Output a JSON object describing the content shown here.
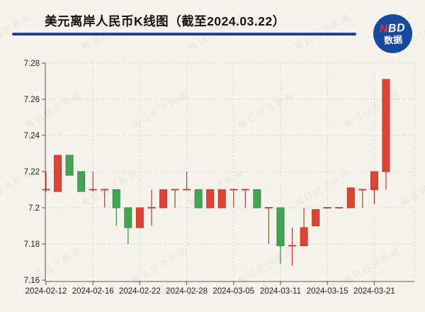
{
  "header": {
    "title": "美元离岸人民币K线图（截至2024.03.22）",
    "logo": {
      "n": "N",
      "bd": "BD",
      "subtext": "数据"
    }
  },
  "watermark": {
    "text": "每日经济新闻"
  },
  "chart_data": {
    "type": "candlestick",
    "title": "美元离岸人民币K线图（截至2024.03.22）",
    "ylabel": "",
    "xlabel": "",
    "ylim": [
      7.16,
      7.28
    ],
    "grid": true,
    "y_ticks": [
      7.16,
      7.18,
      7.2,
      7.22,
      7.24,
      7.26,
      7.28
    ],
    "y_tick_labels": [
      "7.16",
      "7.18",
      "7.2",
      "7.22",
      "7.24",
      "7.26",
      "7.28"
    ],
    "x_tick_labels": [
      "2024-02-12",
      "2024-02-16",
      "2024-02-22",
      "2024-02-28",
      "2024-03-05",
      "2024-03-11",
      "2024-03-15",
      "2024-03-21"
    ],
    "x_tick_indices": [
      0,
      4,
      8,
      12,
      16,
      20,
      24,
      28
    ],
    "colors": {
      "up_fill": "#de4337",
      "up_stroke": "#bf392d",
      "down_fill": "#46a455",
      "down_stroke": "#2f8a41",
      "axis": "#555555",
      "label": "#222222",
      "gridline": "#ccc8bf"
    },
    "candles": [
      {
        "date": "2024-02-12",
        "o": 7.21,
        "h": 7.22,
        "l": 7.209,
        "c": 7.21
      },
      {
        "date": "2024-02-13",
        "o": 7.209,
        "h": 7.229,
        "l": 7.209,
        "c": 7.229
      },
      {
        "date": "2024-02-14",
        "o": 7.229,
        "h": 7.229,
        "l": 7.218,
        "c": 7.218
      },
      {
        "date": "2024-02-15",
        "o": 7.22,
        "h": 7.22,
        "l": 7.209,
        "c": 7.209
      },
      {
        "date": "2024-02-16",
        "o": 7.21,
        "h": 7.22,
        "l": 7.209,
        "c": 7.21
      },
      {
        "date": "2024-02-19",
        "o": 7.21,
        "h": 7.21,
        "l": 7.2,
        "c": 7.21
      },
      {
        "date": "2024-02-20",
        "o": 7.21,
        "h": 7.21,
        "l": 7.19,
        "c": 7.2
      },
      {
        "date": "2024-02-21",
        "o": 7.2,
        "h": 7.2,
        "l": 7.18,
        "c": 7.189
      },
      {
        "date": "2024-02-22",
        "o": 7.189,
        "h": 7.2,
        "l": 7.189,
        "c": 7.2
      },
      {
        "date": "2024-02-23",
        "o": 7.2,
        "h": 7.21,
        "l": 7.19,
        "c": 7.2
      },
      {
        "date": "2024-02-26",
        "o": 7.2,
        "h": 7.21,
        "l": 7.2,
        "c": 7.21
      },
      {
        "date": "2024-02-27",
        "o": 7.21,
        "h": 7.21,
        "l": 7.2,
        "c": 7.21
      },
      {
        "date": "2024-02-28",
        "o": 7.21,
        "h": 7.22,
        "l": 7.21,
        "c": 7.21
      },
      {
        "date": "2024-02-29",
        "o": 7.21,
        "h": 7.21,
        "l": 7.2,
        "c": 7.2
      },
      {
        "date": "2024-03-01",
        "o": 7.2,
        "h": 7.21,
        "l": 7.2,
        "c": 7.21
      },
      {
        "date": "2024-03-04",
        "o": 7.2,
        "h": 7.21,
        "l": 7.2,
        "c": 7.21
      },
      {
        "date": "2024-03-05",
        "o": 7.21,
        "h": 7.21,
        "l": 7.2,
        "c": 7.21
      },
      {
        "date": "2024-03-06",
        "o": 7.21,
        "h": 7.21,
        "l": 7.2,
        "c": 7.21
      },
      {
        "date": "2024-03-07",
        "o": 7.21,
        "h": 7.21,
        "l": 7.2,
        "c": 7.2
      },
      {
        "date": "2024-03-08",
        "o": 7.2,
        "h": 7.2,
        "l": 7.18,
        "c": 7.2
      },
      {
        "date": "2024-03-11",
        "o": 7.2,
        "h": 7.2,
        "l": 7.169,
        "c": 7.179
      },
      {
        "date": "2024-03-12",
        "o": 7.179,
        "h": 7.189,
        "l": 7.168,
        "c": 7.179
      },
      {
        "date": "2024-03-13",
        "o": 7.179,
        "h": 7.2,
        "l": 7.179,
        "c": 7.189
      },
      {
        "date": "2024-03-14",
        "o": 7.19,
        "h": 7.199,
        "l": 7.19,
        "c": 7.199
      },
      {
        "date": "2024-03-15",
        "o": 7.2,
        "h": 7.2,
        "l": 7.2,
        "c": 7.2
      },
      {
        "date": "2024-03-18",
        "o": 7.2,
        "h": 7.2,
        "l": 7.2,
        "c": 7.2
      },
      {
        "date": "2024-03-19",
        "o": 7.2,
        "h": 7.211,
        "l": 7.2,
        "c": 7.211
      },
      {
        "date": "2024-03-20",
        "o": 7.21,
        "h": 7.21,
        "l": 7.2,
        "c": 7.21
      },
      {
        "date": "2024-03-21",
        "o": 7.21,
        "h": 7.22,
        "l": 7.202,
        "c": 7.22
      },
      {
        "date": "2024-03-22",
        "o": 7.22,
        "h": 7.271,
        "l": 7.21,
        "c": 7.271
      }
    ]
  }
}
